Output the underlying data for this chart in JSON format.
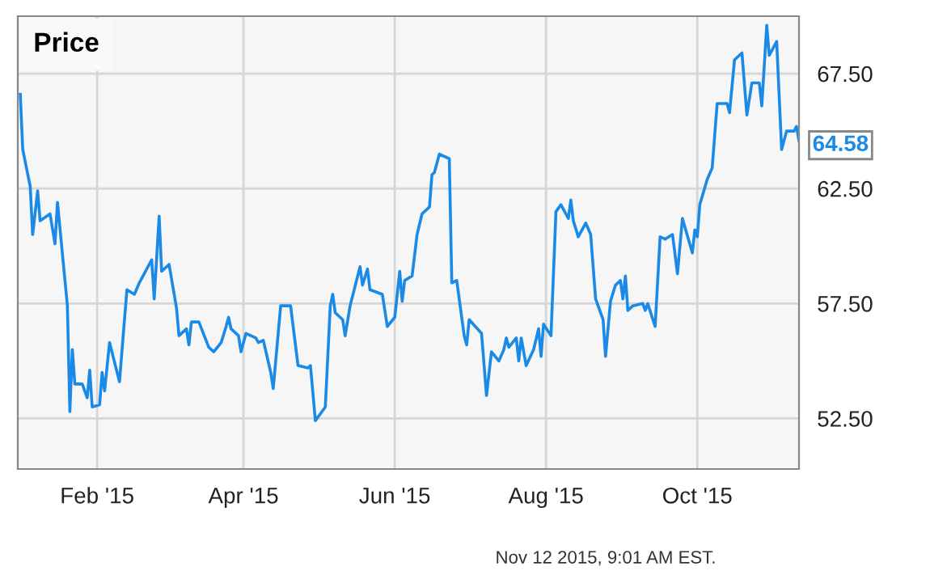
{
  "chart_data": {
    "type": "line",
    "title": "Price",
    "x": [
      "2015-01-01",
      "2015-01-02",
      "2015-01-05",
      "2015-01-06",
      "2015-01-08",
      "2015-01-09",
      "2015-01-13",
      "2015-01-15",
      "2015-01-16",
      "2015-01-20",
      "2015-01-21",
      "2015-01-22",
      "2015-01-23",
      "2015-01-26",
      "2015-01-28",
      "2015-01-29",
      "2015-01-30",
      "2015-02-02",
      "2015-02-03",
      "2015-02-04",
      "2015-02-06",
      "2015-02-10",
      "2015-02-13",
      "2015-02-16",
      "2015-02-18",
      "2015-02-21",
      "2015-02-23",
      "2015-02-24",
      "2015-02-26",
      "2015-02-27",
      "2015-03-02",
      "2015-03-05",
      "2015-03-06",
      "2015-03-09",
      "2015-03-10",
      "2015-03-11",
      "2015-03-14",
      "2015-03-18",
      "2015-03-20",
      "2015-03-23",
      "2015-03-25",
      "2015-03-26",
      "2015-03-27",
      "2015-03-30",
      "2015-03-31",
      "2015-04-02",
      "2015-04-06",
      "2015-04-07",
      "2015-04-09",
      "2015-04-12",
      "2015-04-13",
      "2015-04-16",
      "2015-04-18",
      "2015-04-20",
      "2015-04-23",
      "2015-04-27",
      "2015-04-28",
      "2015-04-30",
      "2015-05-04",
      "2015-05-06",
      "2015-05-07",
      "2015-05-08",
      "2015-05-11",
      "2015-05-12",
      "2015-05-14",
      "2015-05-18",
      "2015-05-19",
      "2015-05-21",
      "2015-05-22",
      "2015-05-27",
      "2015-05-29",
      "2015-06-01",
      "2015-06-03",
      "2015-06-04",
      "2015-06-05",
      "2015-06-08",
      "2015-06-10",
      "2015-06-12",
      "2015-06-15",
      "2015-06-16",
      "2015-06-17",
      "2015-06-19",
      "2015-06-23",
      "2015-06-24",
      "2015-06-26",
      "2015-06-29",
      "2015-06-30",
      "2015-07-01",
      "2015-07-06",
      "2015-07-08",
      "2015-07-10",
      "2015-07-13",
      "2015-07-15",
      "2015-07-16",
      "2015-07-17",
      "2015-07-20",
      "2015-07-21",
      "2015-07-22",
      "2015-07-24",
      "2015-07-27",
      "2015-07-29",
      "2015-07-30",
      "2015-07-31",
      "2015-08-03",
      "2015-08-05",
      "2015-08-07",
      "2015-08-10",
      "2015-08-11",
      "2015-08-12",
      "2015-08-14",
      "2015-08-17",
      "2015-08-19",
      "2015-08-21",
      "2015-08-24",
      "2015-08-25",
      "2015-08-27",
      "2015-08-29",
      "2015-08-31",
      "2015-09-01",
      "2015-09-02",
      "2015-09-03",
      "2015-09-05",
      "2015-09-09",
      "2015-09-10",
      "2015-09-11",
      "2015-09-14",
      "2015-09-16",
      "2015-09-18",
      "2015-09-21",
      "2015-09-23",
      "2015-09-25",
      "2015-09-29",
      "2015-09-30",
      "2015-10-01",
      "2015-10-02",
      "2015-10-05",
      "2015-10-07",
      "2015-10-09",
      "2015-10-13",
      "2015-10-14",
      "2015-10-16",
      "2015-10-19",
      "2015-10-21",
      "2015-10-23",
      "2015-10-26",
      "2015-10-27",
      "2015-10-29",
      "2015-10-30",
      "2015-11-02",
      "2015-11-04",
      "2015-11-06",
      "2015-11-09",
      "2015-11-10",
      "2015-11-11"
    ],
    "series": [
      {
        "color": "#1a8ae6",
        "values": [
          66.6,
          64.2,
          62.6,
          60.5,
          62.4,
          61.1,
          61.4,
          60.1,
          61.9,
          57.4,
          52.8,
          55.5,
          54.0,
          54.0,
          53.4,
          54.6,
          53.0,
          53.1,
          54.5,
          53.7,
          55.8,
          54.1,
          58.1,
          57.9,
          58.4,
          59.0,
          59.4,
          57.7,
          61.3,
          58.9,
          59.2,
          57.3,
          56.1,
          56.4,
          55.7,
          56.7,
          56.7,
          55.6,
          55.4,
          55.8,
          56.5,
          56.9,
          56.4,
          56.1,
          55.4,
          56.2,
          56.0,
          55.8,
          55.9,
          54.5,
          53.8,
          57.4,
          57.4,
          57.4,
          54.8,
          54.7,
          54.8,
          52.4,
          53.0,
          57.4,
          57.9,
          57.1,
          56.8,
          56.1,
          57.4,
          59.1,
          58.3,
          59.0,
          58.1,
          57.9,
          56.5,
          56.9,
          58.9,
          57.6,
          58.5,
          58.7,
          60.5,
          61.4,
          61.7,
          63.1,
          63.2,
          64.0,
          63.8,
          58.4,
          58.5,
          56.1,
          55.7,
          56.8,
          56.2,
          53.5,
          55.4,
          55.0,
          55.5,
          56.0,
          55.6,
          56.0,
          55.0,
          56.0,
          54.8,
          55.5,
          56.4,
          55.2,
          56.6,
          56.1,
          61.5,
          61.8,
          61.2,
          62.0,
          61.1,
          60.4,
          61.0,
          60.5,
          57.7,
          56.8,
          55.2,
          57.6,
          58.3,
          58.5,
          57.7,
          58.7,
          57.2,
          57.4,
          57.5,
          57.2,
          57.5,
          56.5,
          60.4,
          60.3,
          60.5,
          58.8,
          61.2,
          59.7,
          60.7,
          60.4,
          61.8,
          62.9,
          63.4,
          66.2,
          66.2,
          65.8,
          68.1,
          68.4,
          65.7,
          67.1,
          67.1,
          66.1,
          69.6,
          68.3,
          68.9,
          64.2,
          65.0,
          65.0,
          65.2,
          64.58
        ]
      }
    ],
    "xlim": [
      "2014-12-31",
      "2015-11-11"
    ],
    "xticks": [
      {
        "value": "2015-02-01",
        "label": "Feb '15"
      },
      {
        "value": "2015-04-01",
        "label": "Apr '15"
      },
      {
        "value": "2015-06-01",
        "label": "Jun '15"
      },
      {
        "value": "2015-08-01",
        "label": "Aug '15"
      },
      {
        "value": "2015-10-01",
        "label": "Oct '15"
      }
    ],
    "ylim": [
      50.3,
      70
    ],
    "yticks": [
      {
        "value": 52.5,
        "label": "52.50"
      },
      {
        "value": 57.5,
        "label": "57.50"
      },
      {
        "value": 62.5,
        "label": "62.50"
      },
      {
        "value": 67.5,
        "label": "67.50"
      }
    ],
    "grid": true,
    "annotations": [
      {
        "text": "64.58",
        "x": "2015-11-11",
        "y": 64.58
      },
      "Nov 12 2015, 9:01 AM EST."
    ]
  }
}
